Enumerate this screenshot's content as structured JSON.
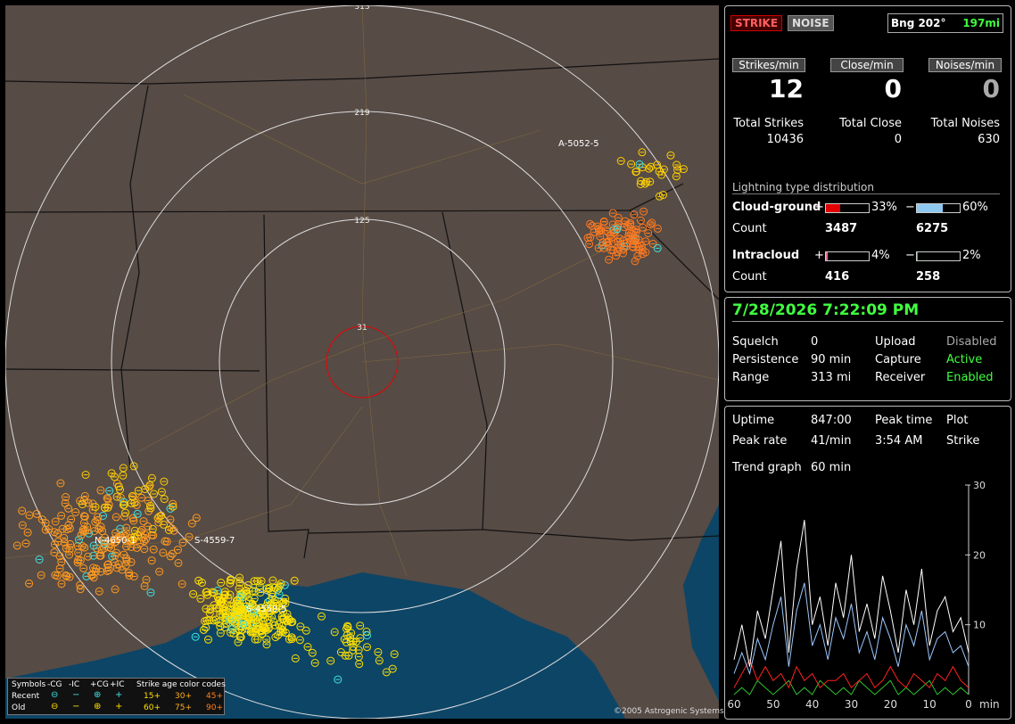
{
  "map": {
    "ring_labels": [
      "313",
      "219",
      "125",
      "31"
    ],
    "storm_labels": [
      "A-5052-5",
      "N-4650-1",
      "S-4559-7",
      "S-4558-5"
    ],
    "legend": {
      "header": [
        "Symbols",
        "-CG",
        "-IC",
        "+CG",
        "+IC",
        "Strike age color codes"
      ],
      "symbols": [
        "⊖",
        "−",
        "⊕",
        "+"
      ],
      "rows": [
        "Recent",
        "Old"
      ],
      "recent_ages": [
        "15+",
        "30+",
        "45+"
      ],
      "old_ages": [
        "60+",
        "75+",
        "90+"
      ]
    },
    "copyright": "©2005 Astrogenic Systems"
  },
  "status": {
    "buttons": [
      "STRIKE",
      "NOISE"
    ],
    "bearing": "Bng 202°",
    "distance": "197mi",
    "rates": [
      {
        "label": "Strikes/min",
        "value": "12"
      },
      {
        "label": "Close/min",
        "value": "0"
      },
      {
        "label": "Noises/min",
        "value": "0"
      }
    ],
    "totals": [
      {
        "label": "Total Strikes",
        "value": "10436"
      },
      {
        "label": "Total Close",
        "value": "0"
      },
      {
        "label": "Total Noises",
        "value": "630"
      }
    ]
  },
  "distribution": {
    "title": "Lightning type distribution",
    "rows": [
      {
        "label": "Cloud-ground",
        "pos_sign": "+",
        "pos": {
          "value": 33,
          "label": "33%"
        },
        "pos_color": "#e00000",
        "neg_sign": "−",
        "neg": {
          "value": 60,
          "label": "60%"
        },
        "neg_color": "#8ec8f0",
        "count_label": "Count",
        "counts": [
          "3487",
          "6275"
        ]
      },
      {
        "label": "Intracloud",
        "pos_sign": "+",
        "pos": {
          "value": 4,
          "label": "4%"
        },
        "pos_color": "#e070a0",
        "neg_sign": "−",
        "neg": {
          "value": 2,
          "label": "2%"
        },
        "neg_color": "#30c030",
        "count_label": "Count",
        "counts": [
          "416",
          "258"
        ]
      }
    ]
  },
  "settings": {
    "datetime": "7/28/2026 7:22:09 PM",
    "rows": [
      [
        "Squelch",
        "0",
        "Upload",
        "Disabled"
      ],
      [
        "Persistence",
        "90 min",
        "Capture",
        "Active"
      ],
      [
        "Range",
        "313 mi",
        "Receiver",
        "Enabled"
      ]
    ]
  },
  "stats": {
    "rows": [
      [
        "Uptime",
        "847:00",
        "Peak time",
        "Plot"
      ],
      [
        "Peak rate",
        "41/min",
        "3:54 AM",
        "Strike"
      ]
    ],
    "trend": [
      "Trend graph",
      "60 min"
    ]
  },
  "chart_data": {
    "type": "line",
    "x": [
      60,
      58,
      56,
      54,
      52,
      50,
      48,
      46,
      44,
      42,
      40,
      38,
      36,
      34,
      32,
      30,
      28,
      26,
      24,
      22,
      20,
      18,
      16,
      14,
      12,
      10,
      8,
      6,
      4,
      2,
      0
    ],
    "series": [
      {
        "color": "#ffffff",
        "values": [
          5,
          10,
          4,
          12,
          8,
          15,
          22,
          6,
          18,
          25,
          10,
          14,
          7,
          16,
          11,
          20,
          9,
          13,
          8,
          17,
          12,
          6,
          15,
          10,
          18,
          7,
          12,
          14,
          9,
          11,
          6
        ]
      },
      {
        "color": "#9cc8ff",
        "values": [
          3,
          6,
          3,
          8,
          5,
          10,
          14,
          4,
          12,
          16,
          7,
          10,
          5,
          11,
          8,
          13,
          6,
          9,
          5,
          11,
          8,
          4,
          10,
          7,
          12,
          5,
          8,
          9,
          6,
          7,
          4
        ]
      },
      {
        "color": "#ff2020",
        "values": [
          1,
          3,
          5,
          2,
          4,
          2,
          3,
          1,
          4,
          2,
          3,
          1,
          2,
          2,
          3,
          1,
          2,
          3,
          1,
          2,
          4,
          2,
          1,
          3,
          2,
          1,
          3,
          2,
          4,
          2,
          1
        ]
      },
      {
        "color": "#30c030",
        "values": [
          0,
          1,
          0,
          2,
          1,
          0,
          1,
          2,
          0,
          1,
          0,
          2,
          1,
          0,
          1,
          0,
          2,
          1,
          0,
          1,
          2,
          0,
          1,
          0,
          1,
          2,
          0,
          1,
          0,
          1,
          0
        ]
      }
    ],
    "xlim": [
      60,
      0
    ],
    "ylim": [
      0,
      30
    ],
    "xticks": [
      60,
      50,
      40,
      30,
      20,
      10,
      0
    ],
    "yticks": [
      10,
      20,
      30
    ],
    "x_unit": "min"
  }
}
